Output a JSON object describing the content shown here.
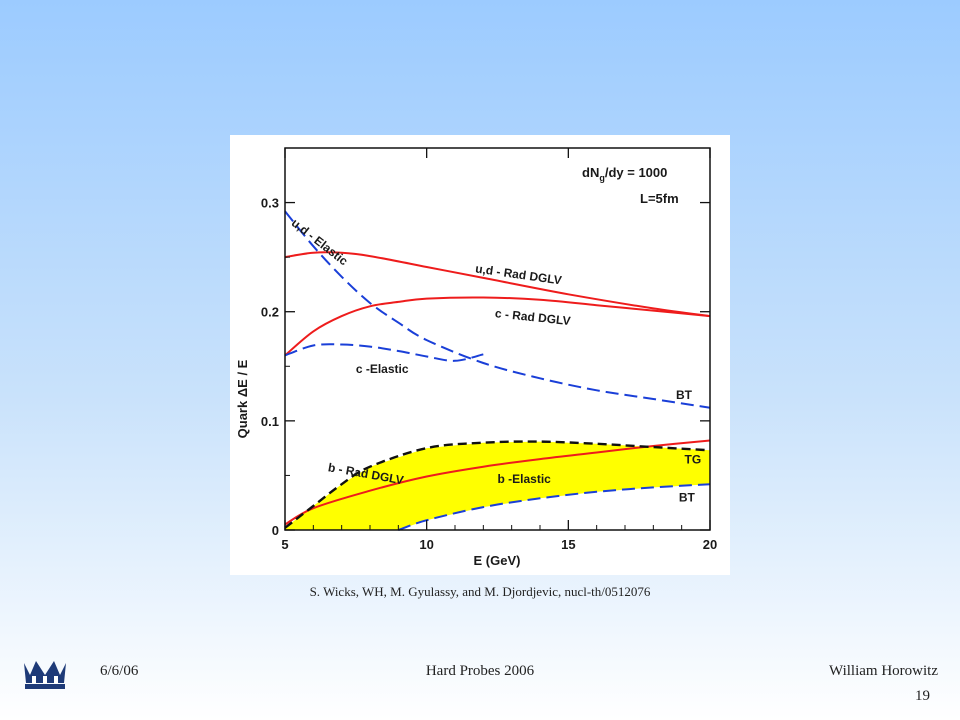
{
  "chart_data": {
    "type": "line",
    "xlabel": "E (GeV)",
    "ylabel": "Quark ΔE / E",
    "xlim": [
      5,
      20
    ],
    "ylim": [
      0,
      0.35
    ],
    "xticks": [
      5,
      10,
      15,
      20
    ],
    "yticks": [
      0,
      0.1,
      0.2,
      0.3
    ],
    "yticklabels": [
      "0",
      "0.1",
      "0.2",
      "0.3"
    ],
    "annotations": {
      "dndy_main": "dN",
      "dndy_sub": "g",
      "dndy_rest": "/dy = 1000",
      "length": "L=5fm"
    },
    "colors": {
      "rad": "#ee1c1c",
      "elastic": "#1a3fd8",
      "band": "#ffff00",
      "band_edge": "#111111"
    },
    "series": [
      {
        "name": "u,d - Rad DGLV",
        "style": "solid-red",
        "x": [
          5,
          6,
          7,
          8,
          10,
          12,
          15,
          18,
          20
        ],
        "y": [
          0.25,
          0.254,
          0.254,
          0.251,
          0.241,
          0.231,
          0.216,
          0.203,
          0.196
        ]
      },
      {
        "name": "c - Rad DGLV",
        "style": "solid-red",
        "x": [
          5,
          6,
          7,
          8,
          9,
          10,
          12,
          14,
          16,
          18,
          20
        ],
        "y": [
          0.16,
          0.182,
          0.196,
          0.205,
          0.209,
          0.212,
          0.213,
          0.211,
          0.206,
          0.201,
          0.196
        ]
      },
      {
        "name": "b - Rad DGLV",
        "style": "solid-red",
        "x": [
          5,
          6,
          8,
          10,
          12,
          14,
          16,
          18,
          20
        ],
        "y": [
          0.005,
          0.02,
          0.036,
          0.049,
          0.058,
          0.065,
          0.071,
          0.077,
          0.082
        ]
      },
      {
        "name": "u,d - Elastic",
        "style": "dashed-blue",
        "x": [
          5,
          6,
          7,
          8,
          9,
          10,
          12,
          14,
          16,
          18,
          20
        ],
        "y": [
          0.292,
          0.26,
          0.232,
          0.208,
          0.19,
          0.174,
          0.153,
          0.139,
          0.128,
          0.12,
          0.112
        ]
      },
      {
        "name": "c -Elastic",
        "style": "dashed-blue",
        "x": [
          5,
          6,
          7,
          8,
          9,
          10,
          11,
          12
        ],
        "y": [
          0.16,
          0.169,
          0.17,
          0.168,
          0.164,
          0.159,
          0.155,
          0.161
        ]
      },
      {
        "name": "b -Elastic",
        "style": "dashed-blue",
        "x": [
          9,
          10,
          12,
          14,
          16,
          18,
          20
        ],
        "y": [
          0.0,
          0.009,
          0.021,
          0.029,
          0.035,
          0.039,
          0.042
        ]
      },
      {
        "name": "b -Elastic TG",
        "style": "dashed-black",
        "x": [
          5,
          6,
          7,
          8,
          10,
          12,
          14,
          16,
          18,
          20
        ],
        "y": [
          0.002,
          0.022,
          0.042,
          0.058,
          0.075,
          0.08,
          0.081,
          0.079,
          0.076,
          0.073
        ]
      }
    ],
    "labels": [
      {
        "text": "u,d - Elastic",
        "x": 5.2,
        "y": 0.28,
        "rotate": 38
      },
      {
        "text": "u,d - Rad DGLV",
        "x": 11.7,
        "y": 0.236,
        "rotate": 8
      },
      {
        "text": "c - Rad DGLV",
        "x": 12.4,
        "y": 0.195,
        "rotate": 6
      },
      {
        "text": "c -Elastic",
        "x": 7.5,
        "y": 0.144,
        "rotate": 0
      },
      {
        "text": "BT",
        "x": 18.8,
        "y": 0.12,
        "rotate": 0
      },
      {
        "text": "b - Rad DGLV",
        "x": 6.5,
        "y": 0.054,
        "rotate": 10
      },
      {
        "text": "b -Elastic",
        "x": 12.5,
        "y": 0.043,
        "rotate": 0
      },
      {
        "text": "TG",
        "x": 19.1,
        "y": 0.061,
        "rotate": 0
      },
      {
        "text": "BT",
        "x": 18.9,
        "y": 0.026,
        "rotate": 0
      }
    ]
  },
  "citation": "S. Wicks, WH, M. Gyulassy, and M. Djordjevic, nucl-th/0512076",
  "footer": {
    "date": "6/6/06",
    "conference": "Hard Probes 2006",
    "author": "William Horowitz",
    "page": "19"
  },
  "logo": "columbia-crown-icon"
}
